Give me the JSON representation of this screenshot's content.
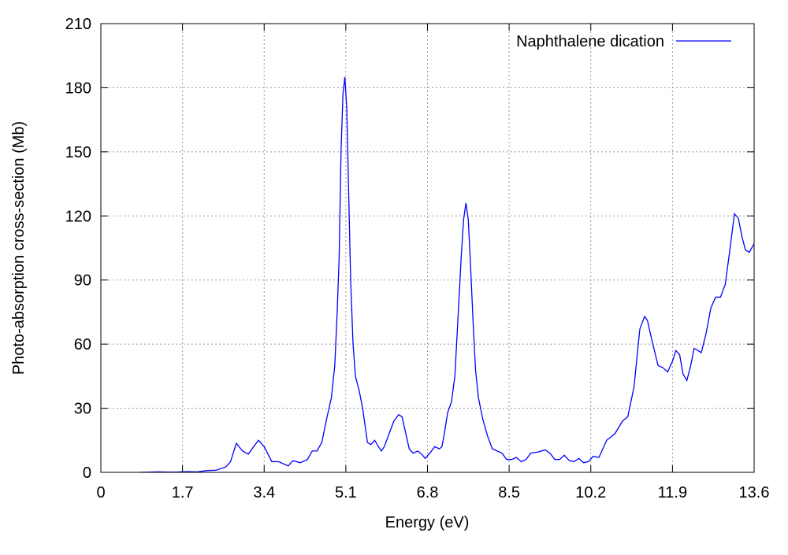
{
  "chart_data": {
    "type": "line",
    "xlabel": "Energy (eV)",
    "ylabel": "Photo-absorption cross-section (Mb)",
    "xlim": [
      0,
      13.6
    ],
    "ylim": [
      0,
      210
    ],
    "xticks": [
      0,
      1.7,
      3.4,
      5.1,
      6.8,
      8.5,
      10.2,
      11.9,
      13.6
    ],
    "yticks": [
      0,
      30,
      60,
      90,
      120,
      150,
      180,
      210
    ],
    "grid": true,
    "legend": "top-right",
    "x": [
      0.8,
      1.2,
      1.5,
      1.8,
      2.0,
      2.2,
      2.4,
      2.6,
      2.7,
      2.82,
      2.95,
      3.07,
      3.18,
      3.28,
      3.4,
      3.56,
      3.7,
      3.9,
      4.0,
      4.15,
      4.3,
      4.4,
      4.5,
      4.6,
      4.7,
      4.8,
      4.87,
      4.92,
      4.96,
      5.0,
      5.04,
      5.08,
      5.12,
      5.16,
      5.2,
      5.25,
      5.3,
      5.38,
      5.45,
      5.5,
      5.55,
      5.62,
      5.7,
      5.78,
      5.84,
      5.9,
      6.0,
      6.1,
      6.2,
      6.27,
      6.35,
      6.42,
      6.5,
      6.6,
      6.7,
      6.75,
      6.85,
      6.95,
      7.05,
      7.1,
      7.15,
      7.22,
      7.3,
      7.37,
      7.43,
      7.5,
      7.55,
      7.6,
      7.65,
      7.7,
      7.75,
      7.8,
      7.86,
      7.95,
      8.05,
      8.15,
      8.25,
      8.35,
      8.45,
      8.55,
      8.65,
      8.75,
      8.85,
      8.95,
      9.1,
      9.25,
      9.35,
      9.45,
      9.55,
      9.65,
      9.75,
      9.85,
      9.95,
      10.05,
      10.15,
      10.25,
      10.37,
      10.53,
      10.7,
      10.86,
      10.97,
      11.1,
      11.22,
      11.32,
      11.38,
      11.47,
      11.6,
      11.7,
      11.8,
      11.9,
      11.97,
      12.05,
      12.12,
      12.2,
      12.28,
      12.35,
      12.43,
      12.5,
      12.6,
      12.7,
      12.8,
      12.9,
      13.0,
      13.1,
      13.19,
      13.27,
      13.35,
      13.42,
      13.5,
      13.6
    ],
    "series": [
      {
        "name": "Naphthalene dication",
        "color": "#0000ff",
        "values": [
          0,
          0.2,
          0.1,
          0.3,
          0.2,
          0.8,
          1,
          2.5,
          5,
          13.6,
          10,
          8.5,
          12,
          15,
          12,
          5,
          5,
          3,
          5.5,
          4.5,
          6,
          10,
          10,
          14,
          25,
          35,
          50,
          75,
          100,
          150,
          177,
          185,
          170,
          130,
          90,
          60,
          45,
          38,
          30,
          22,
          14,
          13,
          15,
          12,
          10,
          12,
          18,
          24,
          27,
          26,
          18,
          11,
          9,
          10,
          8,
          6.5,
          9,
          12,
          11,
          12,
          18,
          28,
          33,
          45,
          70,
          100,
          118,
          126,
          118,
          95,
          70,
          48,
          35,
          25,
          17,
          11,
          10,
          9,
          6,
          6,
          7,
          5,
          6,
          9,
          9.5,
          10.5,
          9,
          6,
          6,
          8,
          5.5,
          5,
          6.5,
          4.5,
          5,
          7.5,
          7,
          15,
          18,
          24,
          26,
          40,
          67,
          73,
          71,
          62,
          50,
          49,
          47,
          52,
          57,
          55,
          46,
          43,
          50,
          58,
          57,
          56,
          65,
          77,
          82,
          82,
          88,
          105,
          121,
          119,
          110,
          104,
          103,
          107
        ]
      }
    ]
  }
}
